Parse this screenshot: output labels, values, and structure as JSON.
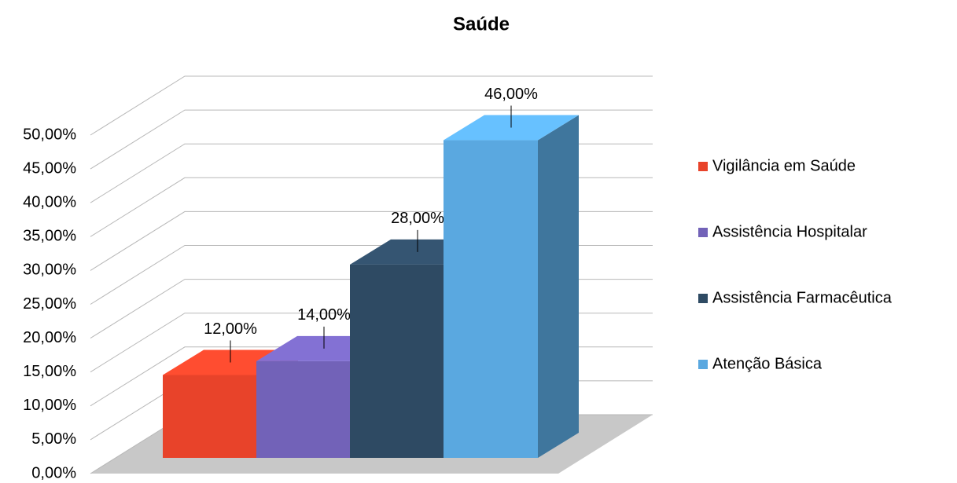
{
  "chart_data": {
    "type": "bar3d",
    "title": "Saúde",
    "series": [
      {
        "name": "Vigilância em Saúde",
        "color": "#e8432a",
        "values": [
          12
        ],
        "value_labels": [
          "12,00%"
        ]
      },
      {
        "name": "Assistência Hospitalar",
        "color": "#7262b8",
        "values": [
          14
        ],
        "value_labels": [
          "14,00%"
        ]
      },
      {
        "name": "Assistência Farmacêutica",
        "color": "#2e4a63",
        "values": [
          28
        ],
        "value_labels": [
          "28,00%"
        ]
      },
      {
        "name": "Atenção Básica",
        "color": "#5aa8e0",
        "values": [
          46
        ],
        "value_labels": [
          "46,00%"
        ]
      }
    ],
    "ylim": [
      0,
      50
    ],
    "yticks": [
      {
        "value": 0,
        "label": "0,00%"
      },
      {
        "value": 5,
        "label": "5,00%"
      },
      {
        "value": 10,
        "label": "10,00%"
      },
      {
        "value": 15,
        "label": "15,00%"
      },
      {
        "value": 20,
        "label": "20,00%"
      },
      {
        "value": 25,
        "label": "25,00%"
      },
      {
        "value": 30,
        "label": "30,00%"
      },
      {
        "value": 35,
        "label": "35,00%"
      },
      {
        "value": 40,
        "label": "40,00%"
      },
      {
        "value": 45,
        "label": "45,00%"
      },
      {
        "value": 50,
        "label": "50,00%"
      }
    ],
    "grid": true,
    "legend": "right"
  }
}
